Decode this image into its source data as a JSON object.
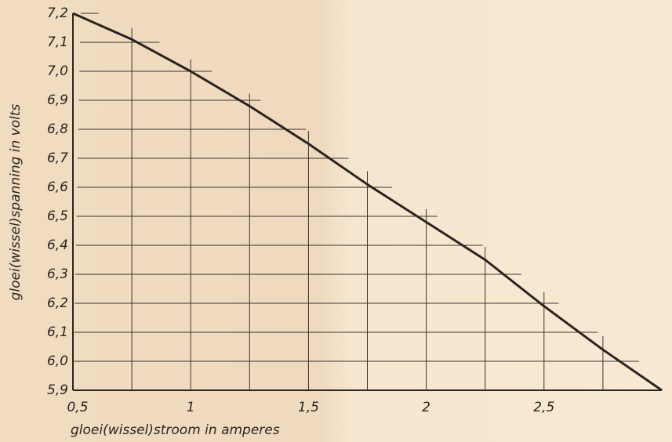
{
  "chart_data": {
    "type": "line",
    "xlabel": "gloei(wissel)stroom in amperes",
    "ylabel": "gloei(wissel)spanning in volts",
    "x": [
      0.5,
      0.75,
      1.0,
      1.25,
      1.5,
      1.75,
      2.0,
      2.25,
      2.5,
      2.75,
      3.0
    ],
    "series": [
      {
        "name": "spanning",
        "color": "#2a2520",
        "values": [
          7.2,
          7.11,
          7.0,
          6.88,
          6.75,
          6.61,
          6.48,
          6.35,
          6.19,
          6.04,
          5.9
        ]
      }
    ],
    "xlim": [
      0.5,
      3.0
    ],
    "ylim": [
      5.9,
      7.2
    ],
    "xticks": [
      {
        "value": 0.5,
        "label": "0,5"
      },
      1,
      {
        "value": 1.5,
        "label": "1,5"
      },
      2,
      {
        "value": 2.5,
        "label": "2,5"
      }
    ],
    "xgrid": [
      0.75,
      1.0,
      1.25,
      1.5,
      1.75,
      2.0,
      2.25,
      2.5,
      2.75
    ],
    "yticks": [
      {
        "value": 5.9,
        "label": "5,9"
      },
      {
        "value": 6.0,
        "label": "6,0"
      },
      {
        "value": 6.1,
        "label": "6,1"
      },
      {
        "value": 6.2,
        "label": "6,2"
      },
      {
        "value": 6.3,
        "label": "6,3"
      },
      {
        "value": 6.4,
        "label": "6,4"
      },
      {
        "value": 6.5,
        "label": "6,5"
      },
      {
        "value": 6.6,
        "label": "6,6"
      },
      {
        "value": 6.7,
        "label": "6,7"
      },
      {
        "value": 6.8,
        "label": "6,8"
      },
      {
        "value": 6.9,
        "label": "6,9"
      },
      {
        "value": 7.0,
        "label": "7,0"
      },
      {
        "value": 7.1,
        "label": "7,1"
      },
      {
        "value": 7.2,
        "label": "7,2"
      }
    ],
    "grid": true
  }
}
